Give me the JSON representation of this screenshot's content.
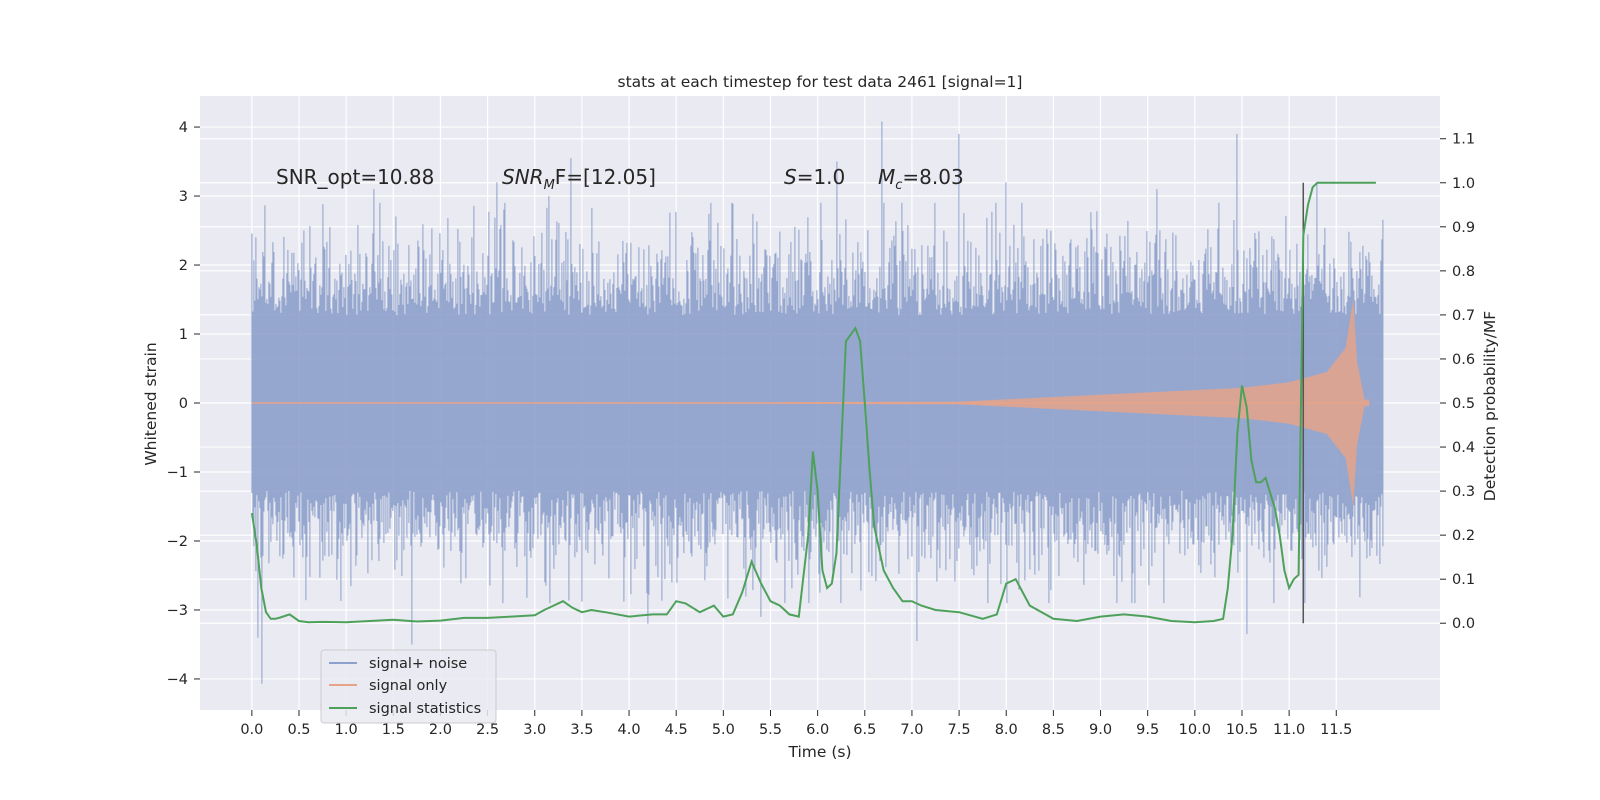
{
  "chart_data": {
    "type": "line",
    "title": "stats at each timestep for test data 2461 [signal=1]",
    "xlabel": "Time (s)",
    "ylabel": "Whitened strain",
    "y2label": "Detection probability/MF",
    "xlim": [
      -0.55,
      12.6
    ],
    "ylim": [
      -4.45,
      4.45
    ],
    "y2lim": [
      -0.197,
      1.197
    ],
    "xticks": [
      0.0,
      0.5,
      1.0,
      1.5,
      2.0,
      2.5,
      3.0,
      3.5,
      4.0,
      4.5,
      5.0,
      5.5,
      6.0,
      6.5,
      7.0,
      7.5,
      8.0,
      8.5,
      9.0,
      9.5,
      10.0,
      10.5,
      11.0,
      11.5
    ],
    "xtick_labels": [
      "0.0",
      "0.5",
      "1.0",
      "1.5",
      "2.0",
      "2.5",
      "3.0",
      "3.5",
      "4.0",
      "4.5",
      "5.0",
      "5.5",
      "6.0",
      "6.5",
      "7.0",
      "7.5",
      "8.0",
      "8.5",
      "9.0",
      "9.5",
      "10.0",
      "10.5",
      "11.0",
      "11.5"
    ],
    "yticks": [
      -4,
      -3,
      -2,
      -1,
      0,
      1,
      2,
      3,
      4
    ],
    "ytick_labels": [
      "−4",
      "−3",
      "−2",
      "−1",
      "0",
      "1",
      "2",
      "3",
      "4"
    ],
    "y2ticks": [
      0.0,
      0.1,
      0.2,
      0.3,
      0.4,
      0.5,
      0.6,
      0.7,
      0.8,
      0.9,
      1.0,
      1.1
    ],
    "y2tick_labels": [
      "0.0",
      "0.1",
      "0.2",
      "0.3",
      "0.4",
      "0.5",
      "0.6",
      "0.7",
      "0.8",
      "0.9",
      "1.0",
      "1.1"
    ],
    "grid": true,
    "legend_position": "lower-left",
    "annotations": {
      "snr_opt": "SNR_opt=10.88",
      "snr_mf_main": "SNR",
      "snr_mf_sub": "M",
      "snr_mf_rest": "F=[12.05]",
      "s_sym": "S",
      "s_val": "=1.0",
      "mc_sym": "M",
      "mc_sub": "c",
      "mc_val": "=8.03"
    },
    "series": [
      {
        "name": "signal+ noise",
        "color": "#8da0cb",
        "x_range": [
          0.0,
          12.0
        ],
        "typical_envelope": 1.3,
        "peak_values": [
          [
            0.04,
            2.4
          ],
          [
            0.07,
            -3.4
          ],
          [
            0.11,
            -4.07
          ],
          [
            0.55,
            2.5
          ],
          [
            1.3,
            3.1
          ],
          [
            1.7,
            -3.5
          ],
          [
            2.6,
            3.2
          ],
          [
            3.15,
            3.0
          ],
          [
            3.38,
            3.55
          ],
          [
            4.2,
            -3.2
          ],
          [
            5.4,
            -3.1
          ],
          [
            6.2,
            3.5
          ],
          [
            6.68,
            4.08
          ],
          [
            7.05,
            -3.45
          ],
          [
            7.5,
            3.9
          ],
          [
            8.0,
            3.2
          ],
          [
            9.6,
            3.1
          ],
          [
            10.45,
            3.9
          ],
          [
            10.55,
            -3.35
          ],
          [
            11.3,
            3.2
          ]
        ]
      },
      {
        "name": "signal only",
        "color": "#e5a38a",
        "x_range": [
          0.0,
          11.85
        ],
        "amplitude_envelope": [
          [
            0.0,
            0.005
          ],
          [
            5.0,
            0.01
          ],
          [
            7.5,
            0.02
          ],
          [
            9.0,
            0.12
          ],
          [
            10.5,
            0.22
          ],
          [
            11.0,
            0.3
          ],
          [
            11.4,
            0.45
          ],
          [
            11.6,
            0.8
          ],
          [
            11.68,
            1.5
          ],
          [
            11.72,
            0.6
          ],
          [
            11.8,
            0.05
          ]
        ]
      },
      {
        "name": "signal statistics",
        "color": "#4ea15a",
        "axis": "y2",
        "x": [
          0.0,
          0.05,
          0.1,
          0.15,
          0.2,
          0.25,
          0.3,
          0.4,
          0.5,
          0.6,
          0.75,
          1.0,
          1.25,
          1.5,
          1.75,
          2.0,
          2.25,
          2.5,
          2.75,
          3.0,
          3.1,
          3.2,
          3.3,
          3.4,
          3.5,
          3.6,
          3.75,
          4.0,
          4.25,
          4.4,
          4.5,
          4.6,
          4.75,
          4.9,
          5.0,
          5.1,
          5.2,
          5.3,
          5.4,
          5.5,
          5.6,
          5.7,
          5.8,
          5.9,
          5.95,
          6.0,
          6.05,
          6.1,
          6.15,
          6.2,
          6.25,
          6.3,
          6.4,
          6.45,
          6.5,
          6.55,
          6.6,
          6.7,
          6.8,
          6.9,
          7.0,
          7.1,
          7.25,
          7.5,
          7.75,
          7.9,
          8.0,
          8.1,
          8.25,
          8.5,
          8.75,
          9.0,
          9.25,
          9.5,
          9.75,
          10.0,
          10.2,
          10.3,
          10.35,
          10.4,
          10.45,
          10.5,
          10.55,
          10.6,
          10.65,
          10.7,
          10.75,
          10.85,
          10.9,
          10.95,
          11.0,
          11.05,
          11.1,
          11.15,
          11.2,
          11.25,
          11.3,
          11.4,
          11.6,
          11.8,
          11.92
        ],
        "values": [
          0.25,
          0.18,
          0.08,
          0.025,
          0.01,
          0.01,
          0.013,
          0.02,
          0.005,
          0.002,
          0.003,
          0.002,
          0.005,
          0.008,
          0.004,
          0.006,
          0.012,
          0.012,
          0.015,
          0.018,
          0.03,
          0.04,
          0.05,
          0.035,
          0.025,
          0.03,
          0.025,
          0.015,
          0.02,
          0.02,
          0.05,
          0.045,
          0.025,
          0.04,
          0.015,
          0.02,
          0.07,
          0.14,
          0.09,
          0.05,
          0.04,
          0.02,
          0.015,
          0.2,
          0.39,
          0.3,
          0.12,
          0.08,
          0.09,
          0.16,
          0.4,
          0.64,
          0.67,
          0.64,
          0.5,
          0.35,
          0.22,
          0.12,
          0.08,
          0.05,
          0.05,
          0.04,
          0.03,
          0.025,
          0.01,
          0.02,
          0.09,
          0.1,
          0.04,
          0.01,
          0.005,
          0.015,
          0.02,
          0.015,
          0.005,
          0.002,
          0.005,
          0.01,
          0.08,
          0.2,
          0.43,
          0.54,
          0.49,
          0.37,
          0.32,
          0.32,
          0.33,
          0.26,
          0.2,
          0.12,
          0.08,
          0.1,
          0.11,
          0.88,
          0.95,
          0.99,
          1.0,
          1.0,
          1.0,
          1.0,
          1.0
        ]
      }
    ],
    "vertical_marker_x": 11.15,
    "vertical_marker_color": "#555555"
  }
}
